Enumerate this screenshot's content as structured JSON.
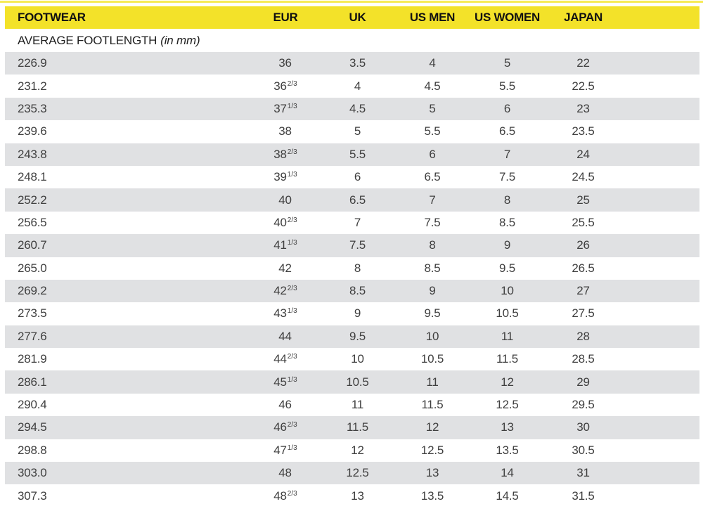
{
  "colors": {
    "header_bg": "#f3e229",
    "top_strip": "#f6ea57",
    "row_shade": "#e0e1e3",
    "header_text": "#111111",
    "body_text": "#3f3f3f"
  },
  "table": {
    "columns": [
      "FOOTWEAR",
      "EUR",
      "UK",
      "US MEN",
      "US WOMEN",
      "JAPAN"
    ],
    "subheader": {
      "text": "AVERAGE FOOTLENGTH",
      "unit": "(in mm)"
    },
    "rows": [
      {
        "mm": "226.9",
        "eur": "36",
        "eur_sup": "",
        "uk": "3.5",
        "us_men": "4",
        "us_women": "5",
        "japan": "22"
      },
      {
        "mm": "231.2",
        "eur": "36",
        "eur_sup": "2/3",
        "uk": "4",
        "us_men": "4.5",
        "us_women": "5.5",
        "japan": "22.5"
      },
      {
        "mm": "235.3",
        "eur": "37",
        "eur_sup": "1/3",
        "uk": "4.5",
        "us_men": "5",
        "us_women": "6",
        "japan": "23"
      },
      {
        "mm": "239.6",
        "eur": "38",
        "eur_sup": "",
        "uk": "5",
        "us_men": "5.5",
        "us_women": "6.5",
        "japan": "23.5"
      },
      {
        "mm": "243.8",
        "eur": "38",
        "eur_sup": "2/3",
        "uk": "5.5",
        "us_men": "6",
        "us_women": "7",
        "japan": "24"
      },
      {
        "mm": "248.1",
        "eur": "39",
        "eur_sup": "1/3",
        "uk": "6",
        "us_men": "6.5",
        "us_women": "7.5",
        "japan": "24.5"
      },
      {
        "mm": "252.2",
        "eur": "40",
        "eur_sup": "",
        "uk": "6.5",
        "us_men": "7",
        "us_women": "8",
        "japan": "25"
      },
      {
        "mm": "256.5",
        "eur": "40",
        "eur_sup": "2/3",
        "uk": "7",
        "us_men": "7.5",
        "us_women": "8.5",
        "japan": "25.5"
      },
      {
        "mm": "260.7",
        "eur": "41",
        "eur_sup": "1/3",
        "uk": "7.5",
        "us_men": "8",
        "us_women": "9",
        "japan": "26"
      },
      {
        "mm": "265.0",
        "eur": "42",
        "eur_sup": "",
        "uk": "8",
        "us_men": "8.5",
        "us_women": "9.5",
        "japan": "26.5"
      },
      {
        "mm": "269.2",
        "eur": "42",
        "eur_sup": "2/3",
        "uk": "8.5",
        "us_men": "9",
        "us_women": "10",
        "japan": "27"
      },
      {
        "mm": "273.5",
        "eur": "43",
        "eur_sup": "1/3",
        "uk": "9",
        "us_men": "9.5",
        "us_women": "10.5",
        "japan": "27.5"
      },
      {
        "mm": "277.6",
        "eur": "44",
        "eur_sup": "",
        "uk": "9.5",
        "us_men": "10",
        "us_women": "11",
        "japan": "28"
      },
      {
        "mm": "281.9",
        "eur": "44",
        "eur_sup": "2/3",
        "uk": "10",
        "us_men": "10.5",
        "us_women": "11.5",
        "japan": "28.5"
      },
      {
        "mm": "286.1",
        "eur": "45",
        "eur_sup": "1/3",
        "uk": "10.5",
        "us_men": "11",
        "us_women": "12",
        "japan": "29"
      },
      {
        "mm": "290.4",
        "eur": "46",
        "eur_sup": "",
        "uk": "11",
        "us_men": "11.5",
        "us_women": "12.5",
        "japan": "29.5"
      },
      {
        "mm": "294.5",
        "eur": "46",
        "eur_sup": "2/3",
        "uk": "11.5",
        "us_men": "12",
        "us_women": "13",
        "japan": "30"
      },
      {
        "mm": "298.8",
        "eur": "47",
        "eur_sup": "1/3",
        "uk": "12",
        "us_men": "12.5",
        "us_women": "13.5",
        "japan": "30.5"
      },
      {
        "mm": "303.0",
        "eur": "48",
        "eur_sup": "",
        "uk": "12.5",
        "us_men": "13",
        "us_women": "14",
        "japan": "31"
      },
      {
        "mm": "307.3",
        "eur": "48",
        "eur_sup": "2/3",
        "uk": "13",
        "us_men": "13.5",
        "us_women": "14.5",
        "japan": "31.5"
      }
    ]
  }
}
